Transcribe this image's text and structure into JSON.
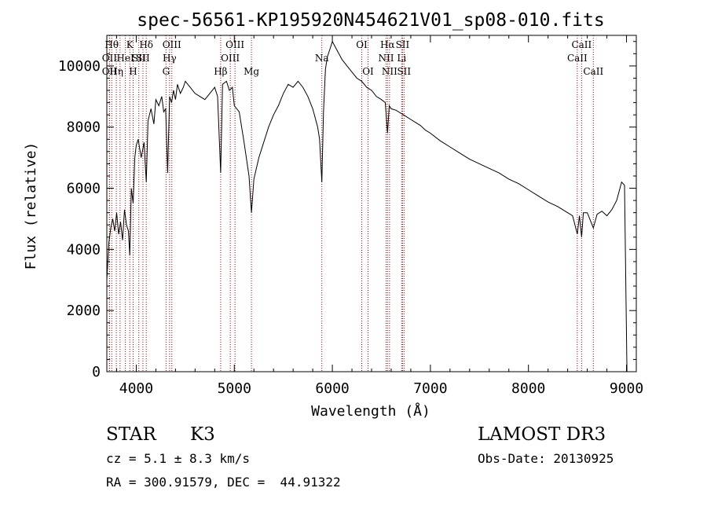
{
  "chart_data": {
    "type": "line",
    "title": "spec-56561-KP195920N454621V01_sp08-010.fits",
    "xlabel": "Wavelength (Å)",
    "ylabel": "Flux (relative)",
    "xlim": [
      3700,
      9100
    ],
    "ylim": [
      0,
      11000
    ],
    "xticks": [
      4000,
      5000,
      6000,
      7000,
      8000,
      9000
    ],
    "yticks": [
      0,
      2000,
      4000,
      6000,
      8000,
      10000
    ],
    "grid": false,
    "series": [
      {
        "name": "flux",
        "x": [
          3700,
          3720,
          3740,
          3760,
          3780,
          3800,
          3820,
          3840,
          3860,
          3880,
          3900,
          3920,
          3934,
          3950,
          3968,
          3985,
          4000,
          4020,
          4050,
          4080,
          4102,
          4120,
          4150,
          4180,
          4200,
          4230,
          4260,
          4280,
          4300,
          4320,
          4340,
          4360,
          4380,
          4400,
          4420,
          4450,
          4480,
          4500,
          4550,
          4600,
          4650,
          4700,
          4750,
          4800,
          4830,
          4861,
          4880,
          4920,
          4950,
          4980,
          5000,
          5050,
          5100,
          5150,
          5175,
          5200,
          5250,
          5300,
          5350,
          5400,
          5450,
          5500,
          5550,
          5600,
          5650,
          5700,
          5750,
          5800,
          5850,
          5870,
          5893,
          5910,
          5930,
          5950,
          5980,
          6000,
          6050,
          6100,
          6150,
          6200,
          6250,
          6300,
          6350,
          6400,
          6450,
          6500,
          6540,
          6563,
          6580,
          6600,
          6650,
          6700,
          6750,
          6800,
          6850,
          6900,
          6950,
          7000,
          7100,
          7200,
          7300,
          7400,
          7500,
          7600,
          7700,
          7800,
          7900,
          8000,
          8100,
          8200,
          8300,
          8400,
          8450,
          8498,
          8520,
          8542,
          8560,
          8600,
          8662,
          8700,
          8750,
          8800,
          8850,
          8900,
          8950,
          8980,
          9000,
          9005
        ],
        "values": [
          3000,
          4200,
          4700,
          5000,
          4600,
          5200,
          4500,
          4900,
          4300,
          5300,
          4800,
          4600,
          3800,
          6000,
          5500,
          7000,
          7400,
          7600,
          7000,
          7500,
          6200,
          8200,
          8600,
          8100,
          8900,
          8700,
          9000,
          8500,
          8600,
          6500,
          9000,
          8800,
          9200,
          8900,
          9400,
          9100,
          9300,
          9500,
          9300,
          9100,
          9000,
          8900,
          9100,
          9300,
          9000,
          6500,
          9400,
          9500,
          9200,
          9300,
          8700,
          8500,
          7500,
          6400,
          5200,
          6300,
          7000,
          7500,
          8000,
          8400,
          8700,
          9100,
          9400,
          9300,
          9500,
          9300,
          9000,
          8600,
          8000,
          7600,
          6200,
          8500,
          9900,
          10300,
          10600,
          10800,
          10500,
          10200,
          10000,
          9800,
          9600,
          9500,
          9300,
          9200,
          9000,
          8900,
          8800,
          7800,
          8700,
          8600,
          8550,
          8450,
          8350,
          8250,
          8150,
          8050,
          7900,
          7800,
          7550,
          7350,
          7150,
          6950,
          6800,
          6650,
          6500,
          6300,
          6150,
          5950,
          5750,
          5550,
          5400,
          5200,
          5100,
          4500,
          5100,
          4400,
          5200,
          5200,
          4700,
          5150,
          5250,
          5100,
          5300,
          5600,
          6200,
          6100,
          1200,
          0
        ]
      }
    ],
    "line_labels": [
      {
        "x": 3750,
        "label": "Hθ",
        "row": 1
      },
      {
        "x": 3727,
        "label": "OII",
        "row": 2
      },
      {
        "x": 3727,
        "label": "OII",
        "row": 3
      },
      {
        "x": 3797,
        "label": "Hη",
        "row": 3
      },
      {
        "x": 3835,
        "label": "",
        "row": 0
      },
      {
        "x": 3889,
        "label": "HeI",
        "row": 2
      },
      {
        "x": 3934,
        "label": "K",
        "row": 1
      },
      {
        "x": 3968,
        "label": "H",
        "row": 3
      },
      {
        "x": 4026,
        "label": "SII",
        "row": 2
      },
      {
        "x": 4102,
        "label": "Hδ",
        "row": 1
      },
      {
        "x": 4068,
        "label": "SII",
        "row": 2
      },
      {
        "x": 4304,
        "label": "G",
        "row": 3
      },
      {
        "x": 4340,
        "label": "Hγ",
        "row": 2
      },
      {
        "x": 4363,
        "label": "OIII",
        "row": 1
      },
      {
        "x": 4861,
        "label": "Hβ",
        "row": 3
      },
      {
        "x": 4959,
        "label": "OIII",
        "row": 2
      },
      {
        "x": 5007,
        "label": "OIII",
        "row": 1
      },
      {
        "x": 5175,
        "label": "Mg",
        "row": 3
      },
      {
        "x": 5893,
        "label": "Na",
        "row": 2
      },
      {
        "x": 6300,
        "label": "OI",
        "row": 1
      },
      {
        "x": 6364,
        "label": "OI",
        "row": 3
      },
      {
        "x": 6548,
        "label": "NII",
        "row": 2
      },
      {
        "x": 6563,
        "label": "Hα",
        "row": 1
      },
      {
        "x": 6583,
        "label": "NII",
        "row": 3
      },
      {
        "x": 6707,
        "label": "Li",
        "row": 2
      },
      {
        "x": 6716,
        "label": "SII",
        "row": 1
      },
      {
        "x": 6731,
        "label": "SII",
        "row": 3
      },
      {
        "x": 8498,
        "label": "CaII",
        "row": 2
      },
      {
        "x": 8542,
        "label": "CaII",
        "row": 1
      },
      {
        "x": 8662,
        "label": "CaII",
        "row": 3
      }
    ]
  },
  "info": {
    "class_label": "STAR",
    "subclass": "K3",
    "survey": "LAMOST DR3",
    "redshift": "cz = 5.1 ± 8.3 km/s",
    "obs_date": "Obs-Date: 20130925",
    "coords": "RA = 300.91579, DEC =  44.91322"
  }
}
